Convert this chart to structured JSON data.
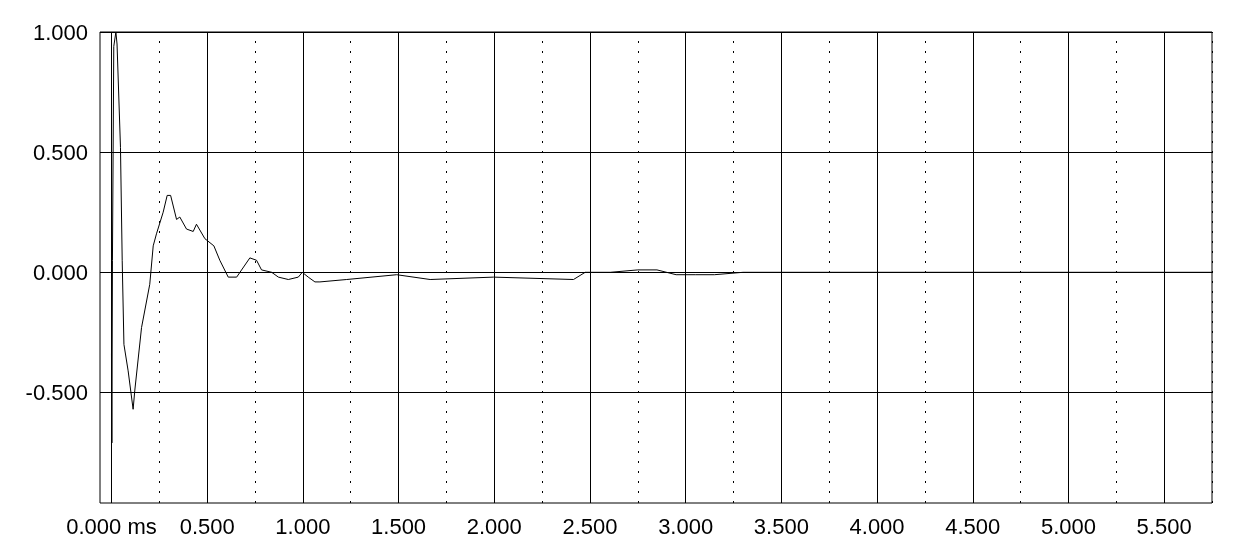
{
  "chart_data": {
    "type": "line",
    "x": [
      0.0,
      0.002,
      0.005,
      0.012,
      0.023,
      0.029,
      0.047,
      0.056,
      0.065,
      0.087,
      0.113,
      0.122,
      0.157,
      0.2,
      0.218,
      0.235,
      0.27,
      0.291,
      0.309,
      0.34,
      0.357,
      0.392,
      0.427,
      0.444,
      0.488,
      0.535,
      0.566,
      0.61,
      0.654,
      0.723,
      0.758,
      0.784,
      0.837,
      0.872,
      0.924,
      0.976,
      0.997,
      1.028,
      1.063,
      1.089,
      1.229,
      1.49,
      1.665,
      1.996,
      2.414,
      2.475,
      2.606,
      2.75,
      2.85,
      2.95,
      3.05,
      3.15,
      3.3,
      4.0,
      5.0,
      5.75
    ],
    "series": [
      {
        "color": "#000000",
        "values": [
          -0.34,
          -0.71,
          0.05,
          0.94,
          1.0,
          0.95,
          0.52,
          0.05,
          -0.3,
          -0.41,
          -0.57,
          -0.49,
          -0.23,
          -0.05,
          0.11,
          0.16,
          0.25,
          0.32,
          0.32,
          0.22,
          0.23,
          0.18,
          0.17,
          0.2,
          0.14,
          0.11,
          0.05,
          -0.02,
          -0.02,
          0.06,
          0.05,
          0.01,
          0.0,
          -0.02,
          -0.03,
          -0.02,
          0.0,
          -0.02,
          -0.04,
          -0.04,
          -0.03,
          -0.01,
          -0.03,
          -0.02,
          -0.03,
          0.0,
          0.0,
          0.01,
          0.01,
          -0.01,
          -0.01,
          -0.01,
          0.0,
          0.0,
          0.0,
          0.0
        ]
      }
    ],
    "xlim": [
      -0.06,
      5.75
    ],
    "xticks": [
      {
        "value": 0,
        "label": "0.000 ms"
      },
      {
        "value": 0.25,
        "label": null
      },
      {
        "value": 0.5,
        "label": "0.500"
      },
      {
        "value": 0.75,
        "label": null
      },
      {
        "value": 1,
        "label": "1.000"
      },
      {
        "value": 1.25,
        "label": null
      },
      {
        "value": 1.5,
        "label": "1.500"
      },
      {
        "value": 1.75,
        "label": null
      },
      {
        "value": 2,
        "label": "2.000"
      },
      {
        "value": 2.25,
        "label": null
      },
      {
        "value": 2.5,
        "label": "2.500"
      },
      {
        "value": 2.75,
        "label": null
      },
      {
        "value": 3,
        "label": "3.000"
      },
      {
        "value": 3.25,
        "label": null
      },
      {
        "value": 3.5,
        "label": "3.500"
      },
      {
        "value": 3.75,
        "label": null
      },
      {
        "value": 4,
        "label": "4.000"
      },
      {
        "value": 4.25,
        "label": null
      },
      {
        "value": 4.5,
        "label": "4.500"
      },
      {
        "value": 4.75,
        "label": null
      },
      {
        "value": 5,
        "label": "5.000"
      },
      {
        "value": 5.25,
        "label": null
      },
      {
        "value": 5.5,
        "label": "5.500"
      },
      {
        "value": 5.75,
        "label": null
      }
    ],
    "ylim": [
      -0.96,
      1.0
    ],
    "yticks": [
      {
        "value": -0.5,
        "label": "-0.500"
      },
      {
        "value": 0,
        "label": "0.000"
      },
      {
        "value": 0.5,
        "label": "0.500"
      },
      {
        "value": 1,
        "label": "1.000"
      }
    ],
    "grid": true,
    "marker": "none",
    "line_style": "solid"
  }
}
